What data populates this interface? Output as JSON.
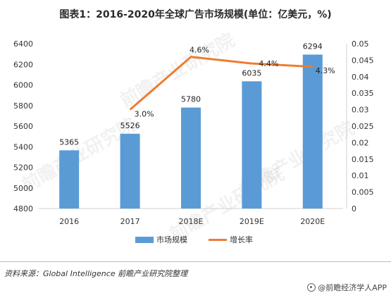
{
  "title": "图表1：2016-2020年全球广告市场规模(单位：亿美元，%)",
  "chart_data": {
    "type": "bar",
    "categories": [
      "2016",
      "2017",
      "2018E",
      "2019E",
      "2020E"
    ],
    "series": [
      {
        "name": "市场规模",
        "kind": "bar",
        "axis": "left",
        "values": [
          5365,
          5526,
          5780,
          6035,
          6294
        ],
        "color": "#5b9bd5"
      },
      {
        "name": "增长率",
        "kind": "line",
        "axis": "right",
        "values": [
          null,
          0.03,
          0.046,
          0.044,
          0.043
        ],
        "labels": [
          "",
          "3.0%",
          "4.6%",
          "4.4%",
          "4.3%"
        ],
        "color": "#ed7d31"
      }
    ],
    "left_axis": {
      "min": 4800,
      "max": 6400,
      "ticks": [
        "4800",
        "5000",
        "5200",
        "5400",
        "5600",
        "5800",
        "6000",
        "6200",
        "6400"
      ]
    },
    "right_axis": {
      "min": 0,
      "max": 0.05,
      "ticks": [
        "0",
        "0.005",
        "0.01",
        "0.015",
        "0.02",
        "0.025",
        "0.03",
        "0.035",
        "0.04",
        "0.045",
        "0.05"
      ]
    },
    "grid": false,
    "legend": "bottom"
  },
  "legend": {
    "bar_label": "市场规模",
    "line_label": "增长率"
  },
  "watermark_text": "前瞻产业研究院",
  "source": "资料来源：Global Intelligence 前瞻产业研究院整理",
  "brand": "@前瞻经济学人APP"
}
